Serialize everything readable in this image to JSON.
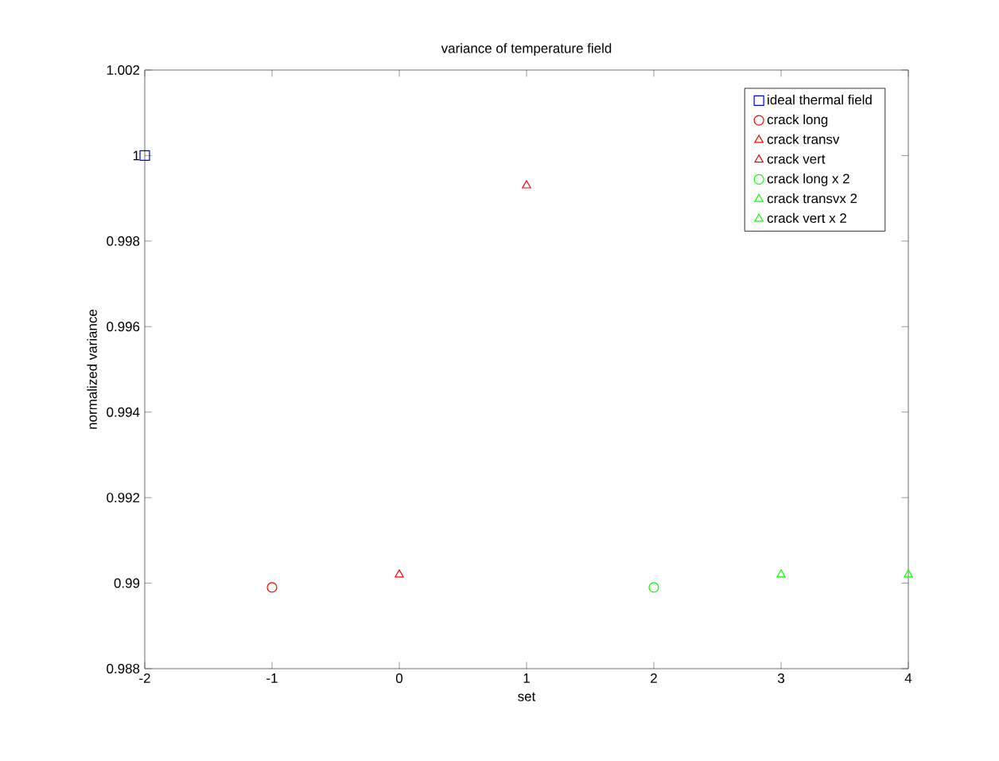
{
  "chart_data": {
    "type": "scatter",
    "title": "variance of temperature field",
    "xlabel": "set",
    "ylabel": "normalized variance",
    "xlim": [
      -2,
      4
    ],
    "xticks": [
      -2,
      -1,
      0,
      1,
      2,
      3,
      4
    ],
    "ylim": [
      0.988,
      1.002
    ],
    "yticks": [
      0.988,
      0.99,
      0.992,
      0.994,
      0.996,
      0.998,
      1,
      1.002
    ],
    "legend": "top right",
    "series": [
      {
        "name": "ideal thermal field",
        "color": "#0000ff",
        "marker": "square",
        "x": [
          -2
        ],
        "values": [
          1
        ]
      },
      {
        "name": "crack long",
        "color": "#ff0000",
        "marker": "circle",
        "x": [
          -1
        ],
        "values": [
          0.9899
        ]
      },
      {
        "name": "crack transv",
        "color": "#ff0000",
        "marker": "triangle",
        "x": [
          0
        ],
        "values": [
          0.9902
        ]
      },
      {
        "name": "crack vert",
        "color": "#ff0000",
        "marker": "triangle",
        "x": [
          1
        ],
        "values": [
          0.9993
        ]
      },
      {
        "name": "crack long x 2",
        "color": "#00ff00",
        "marker": "circle",
        "x": [
          2
        ],
        "values": [
          0.9899
        ]
      },
      {
        "name": "crack transvx 2",
        "color": "#00ff00",
        "marker": "triangle",
        "x": [
          3
        ],
        "values": [
          0.9902
        ]
      },
      {
        "name": "crack vert x 2",
        "color": "#00ff00",
        "marker": "triangle",
        "x": [
          4
        ],
        "values": [
          0.9902
        ]
      }
    ]
  }
}
